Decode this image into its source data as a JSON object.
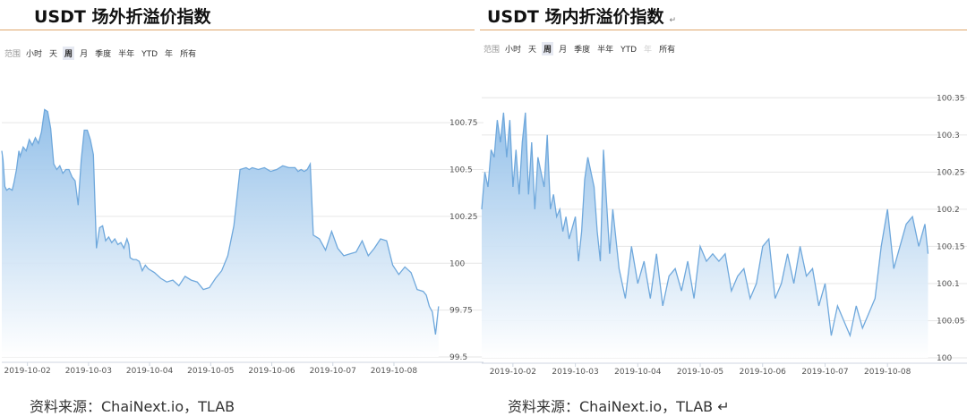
{
  "panels": [
    {
      "title": "USDT 场外折溢价指数",
      "title_mark": "",
      "range_label": "范围",
      "range_buttons": [
        "小时",
        "天",
        "周",
        "月",
        "季度",
        "半年",
        "YTD",
        "年",
        "所有"
      ],
      "range_selected": "周",
      "range_disabled": [],
      "source": "资料来源：ChaiNext.io，TLAB"
    },
    {
      "title": "USDT 场内折溢价指数",
      "title_mark": "↵",
      "range_label": "范围",
      "range_buttons": [
        "小时",
        "天",
        "周",
        "月",
        "季度",
        "半年",
        "YTD",
        "年",
        "所有"
      ],
      "range_selected": "周",
      "range_disabled": [
        "年"
      ],
      "source": "资料来源：ChaiNext.io，TLAB ↵"
    }
  ],
  "colors": {
    "line": "#6fa8dc",
    "fill_top": "#8ebde8",
    "fill_bottom": "#ffffff",
    "grid": "#e6e6e6",
    "rule": "#e0a66c"
  },
  "chart_data": [
    {
      "type": "area",
      "title": "USDT 场外折溢价指数",
      "x_tick_labels": [
        "2019-10-02",
        "2019-10-03",
        "2019-10-04",
        "2019-10-05",
        "2019-10-06",
        "2019-10-07",
        "2019-10-08"
      ],
      "y_tick_labels": [
        "99.5",
        "99.75",
        "100",
        "100.25",
        "100.5",
        "100.75"
      ],
      "ylim": [
        99.5,
        100.87
      ],
      "xlim": [
        0,
        7.3
      ],
      "grid": true,
      "legend": "none",
      "series": [
        {
          "x": [
            0,
            0.02,
            0.05,
            0.08,
            0.12,
            0.17,
            0.2,
            0.24,
            0.28,
            0.3,
            0.35,
            0.4,
            0.45,
            0.5,
            0.55,
            0.6,
            0.65,
            0.7,
            0.75,
            0.8,
            0.85,
            0.9,
            0.95,
            1.0,
            1.05,
            1.1,
            1.15,
            1.2,
            1.25,
            1.3,
            1.35,
            1.4,
            1.45,
            1.5,
            1.55,
            1.6,
            1.65,
            1.7,
            1.75,
            1.8,
            1.85,
            1.9,
            1.95,
            2.0,
            2.05,
            2.08,
            2.1,
            2.15,
            2.2,
            2.25,
            2.3,
            2.35,
            2.4,
            2.5,
            2.6,
            2.7,
            2.8,
            2.9,
            3.0,
            3.1,
            3.2,
            3.3,
            3.4,
            3.5,
            3.6,
            3.7,
            3.8,
            3.9,
            4.0,
            4.05,
            4.1,
            4.2,
            4.3,
            4.4,
            4.5,
            4.6,
            4.7,
            4.8,
            4.85,
            4.9,
            4.95,
            5.0,
            5.05,
            5.1,
            5.2,
            5.3,
            5.4,
            5.5,
            5.6,
            5.7,
            5.8,
            5.9,
            6.0,
            6.1,
            6.2,
            6.3,
            6.4,
            6.5,
            6.6,
            6.7,
            6.8,
            6.9,
            6.95,
            7.0,
            7.05,
            7.1,
            7.15
          ],
          "y": [
            100.6,
            100.55,
            100.41,
            100.39,
            100.4,
            100.39,
            100.43,
            100.5,
            100.6,
            100.57,
            100.62,
            100.6,
            100.66,
            100.63,
            100.67,
            100.64,
            100.7,
            100.82,
            100.81,
            100.72,
            100.53,
            100.5,
            100.52,
            100.48,
            100.5,
            100.5,
            100.46,
            100.44,
            100.31,
            100.55,
            100.71,
            100.71,
            100.66,
            100.58,
            100.08,
            100.19,
            100.2,
            100.12,
            100.14,
            100.11,
            100.13,
            100.1,
            100.11,
            100.08,
            100.13,
            100.1,
            100.03,
            100.02,
            100.02,
            100.01,
            99.96,
            99.99,
            99.97,
            99.95,
            99.92,
            99.9,
            99.91,
            99.88,
            99.93,
            99.91,
            99.9,
            99.86,
            99.87,
            99.92,
            99.96,
            100.04,
            100.2,
            100.5,
            100.51,
            100.5,
            100.51,
            100.5,
            100.51,
            100.49,
            100.5,
            100.52,
            100.51,
            100.51,
            100.49,
            100.5,
            100.49,
            100.5,
            100.53,
            100.15,
            100.13,
            100.07,
            100.17,
            100.08,
            100.04,
            100.05,
            100.06,
            100.12,
            100.04,
            100.08,
            100.13,
            100.12,
            99.99,
            99.94,
            99.98,
            99.95,
            99.86,
            99.85,
            99.83,
            99.77,
            99.74,
            99.62,
            99.77
          ]
        }
      ]
    },
    {
      "type": "area",
      "title": "USDT 场内折溢价指数",
      "x_tick_labels": [
        "2019-10-02",
        "2019-10-03",
        "2019-10-04",
        "2019-10-05",
        "2019-10-06",
        "2019-10-07",
        "2019-10-08"
      ],
      "y_tick_labels": [
        "100",
        "100.05",
        "100.1",
        "100.15",
        "100.2",
        "100.25",
        "100.3",
        "100.35"
      ],
      "ylim": [
        100.0,
        100.36
      ],
      "xlim": [
        0,
        7.2
      ],
      "grid": true,
      "legend": "none",
      "series": [
        {
          "x": [
            0,
            0.05,
            0.1,
            0.15,
            0.2,
            0.25,
            0.3,
            0.35,
            0.4,
            0.45,
            0.5,
            0.55,
            0.6,
            0.65,
            0.7,
            0.75,
            0.8,
            0.85,
            0.9,
            0.95,
            1.0,
            1.05,
            1.1,
            1.15,
            1.2,
            1.25,
            1.3,
            1.35,
            1.4,
            1.5,
            1.55,
            1.6,
            1.65,
            1.7,
            1.8,
            1.85,
            1.9,
            1.95,
            2.0,
            2.05,
            2.1,
            2.2,
            2.3,
            2.4,
            2.5,
            2.6,
            2.7,
            2.8,
            2.9,
            3.0,
            3.1,
            3.2,
            3.3,
            3.4,
            3.5,
            3.6,
            3.7,
            3.8,
            3.9,
            4.0,
            4.1,
            4.2,
            4.3,
            4.4,
            4.5,
            4.6,
            4.7,
            4.8,
            4.9,
            5.0,
            5.1,
            5.2,
            5.3,
            5.4,
            5.5,
            5.6,
            5.7,
            5.8,
            5.9,
            6.0,
            6.1,
            6.2,
            6.3,
            6.4,
            6.5,
            6.6,
            6.7,
            6.8,
            6.9,
            7.0,
            7.1,
            7.15
          ],
          "y": [
            100.2,
            100.25,
            100.23,
            100.28,
            100.27,
            100.32,
            100.29,
            100.33,
            100.27,
            100.32,
            100.23,
            100.28,
            100.22,
            100.29,
            100.33,
            100.22,
            100.29,
            100.2,
            100.27,
            100.25,
            100.23,
            100.3,
            100.2,
            100.22,
            100.19,
            100.2,
            100.17,
            100.19,
            100.16,
            100.19,
            100.13,
            100.17,
            100.24,
            100.27,
            100.23,
            100.17,
            100.13,
            100.28,
            100.21,
            100.14,
            100.2,
            100.12,
            100.08,
            100.15,
            100.1,
            100.13,
            100.08,
            100.14,
            100.07,
            100.11,
            100.12,
            100.09,
            100.13,
            100.08,
            100.15,
            100.13,
            100.14,
            100.13,
            100.14,
            100.09,
            100.11,
            100.12,
            100.08,
            100.1,
            100.15,
            100.16,
            100.08,
            100.1,
            100.14,
            100.1,
            100.15,
            100.11,
            100.12,
            100.07,
            100.1,
            100.03,
            100.07,
            100.05,
            100.03,
            100.07,
            100.04,
            100.06,
            100.08,
            100.15,
            100.2,
            100.12,
            100.15,
            100.18,
            100.19,
            100.15,
            100.18,
            100.14
          ]
        }
      ]
    }
  ]
}
